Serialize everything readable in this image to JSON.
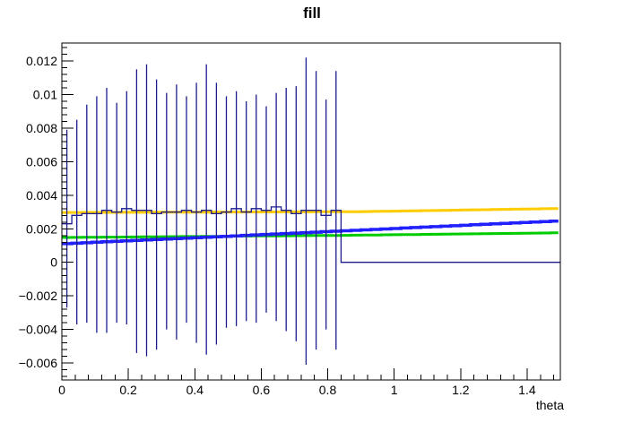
{
  "header": {
    "title": "fill"
  },
  "axes": {
    "x": {
      "label": "theta",
      "min": 0,
      "max": 1.5,
      "major_tick_values": [
        0,
        0.2,
        0.4,
        0.6,
        0.8,
        1,
        1.2,
        1.4
      ],
      "major_tick_labels": [
        "0",
        "0.2",
        "0.4",
        "0.6",
        "0.8",
        "1",
        "1.2",
        "1.4"
      ],
      "minor_tick_step": 0.04
    },
    "y": {
      "min": -0.00701,
      "max": 0.01307,
      "major_tick_values": [
        0.012,
        0.01,
        0.008,
        0.006,
        0.004,
        0.002,
        0,
        -0.002,
        -0.004,
        -0.006
      ],
      "major_tick_labels": [
        "0.012",
        "0.01",
        "0.008",
        "0.006",
        "0.004",
        "0.002",
        "0",
        "−0.002",
        "−0.004",
        "−0.006"
      ],
      "minor_tick_step": 0.0004
    },
    "frame_color": "#000000",
    "background_color": "#ffffff"
  },
  "chart_data": {
    "type": "line",
    "subtype": "histogram-with-error-bars-and-fit-curves",
    "title": "fill",
    "xlabel": "theta",
    "ylabel": "",
    "xlim": [
      0,
      1.5
    ],
    "ylim": [
      -0.00701,
      0.01307
    ],
    "grid": false,
    "legend": "none",
    "bin_width": 0.03,
    "n_bins_total": 50,
    "data_histogram": {
      "name": "data-histogram",
      "color": "#1c1c8f",
      "first_bin_low_edge": 0,
      "n_filled_bins": 28,
      "values": [
        0.0023,
        0.0028,
        0.0029,
        0.0029,
        0.0031,
        0.003,
        0.0032,
        0.0031,
        0.0031,
        0.0029,
        0.003,
        0.003,
        0.0031,
        0.003,
        0.0031,
        0.0029,
        0.003,
        0.0032,
        0.003,
        0.0032,
        0.0031,
        0.0033,
        0.0031,
        0.0029,
        0.0031,
        0.0031,
        0.0028,
        0.0031
      ],
      "err_low_extent": [
        -0.0027,
        -0.0037,
        -0.0036,
        -0.0042,
        -0.0042,
        -0.0036,
        -0.0037,
        -0.0054,
        -0.0056,
        -0.0052,
        -0.004,
        -0.0046,
        -0.0036,
        -0.0048,
        -0.0055,
        -0.0049,
        -0.0039,
        -0.0038,
        -0.0035,
        -0.0036,
        -0.003,
        -0.0035,
        -0.0041,
        -0.0047,
        -0.0061,
        -0.0052,
        -0.004,
        -0.0052
      ],
      "err_high_extent": [
        0.0079,
        0.0085,
        0.0094,
        0.0099,
        0.0104,
        0.0095,
        0.0102,
        0.0115,
        0.0118,
        0.0109,
        0.0101,
        0.0106,
        0.0099,
        0.0107,
        0.0118,
        0.0107,
        0.0099,
        0.0102,
        0.0096,
        0.01,
        0.0093,
        0.0101,
        0.0104,
        0.0105,
        0.0122,
        0.0114,
        0.0097,
        0.0114
      ],
      "empty_tail_value": 0,
      "empty_tail_range": [
        0.84,
        1.5
      ]
    },
    "fit_curves": [
      {
        "name": "yellow-fit",
        "color": "#ffcc00",
        "line_width": 3,
        "breakpoints": [
          [
            0,
            0.00297
          ],
          [
            0.9,
            0.00302
          ],
          [
            1.5,
            0.00321
          ]
        ]
      },
      {
        "name": "green-fit",
        "color": "#00cc00",
        "line_width": 3,
        "breakpoints": [
          [
            0,
            0.00148
          ],
          [
            0.85,
            0.00161
          ],
          [
            1.5,
            0.00176
          ]
        ]
      },
      {
        "name": "blue-fit",
        "color": "#2121ff",
        "line_width": 3.5,
        "breakpoints": [
          [
            0,
            0.0011
          ],
          [
            1.5,
            0.00247
          ]
        ]
      }
    ]
  }
}
